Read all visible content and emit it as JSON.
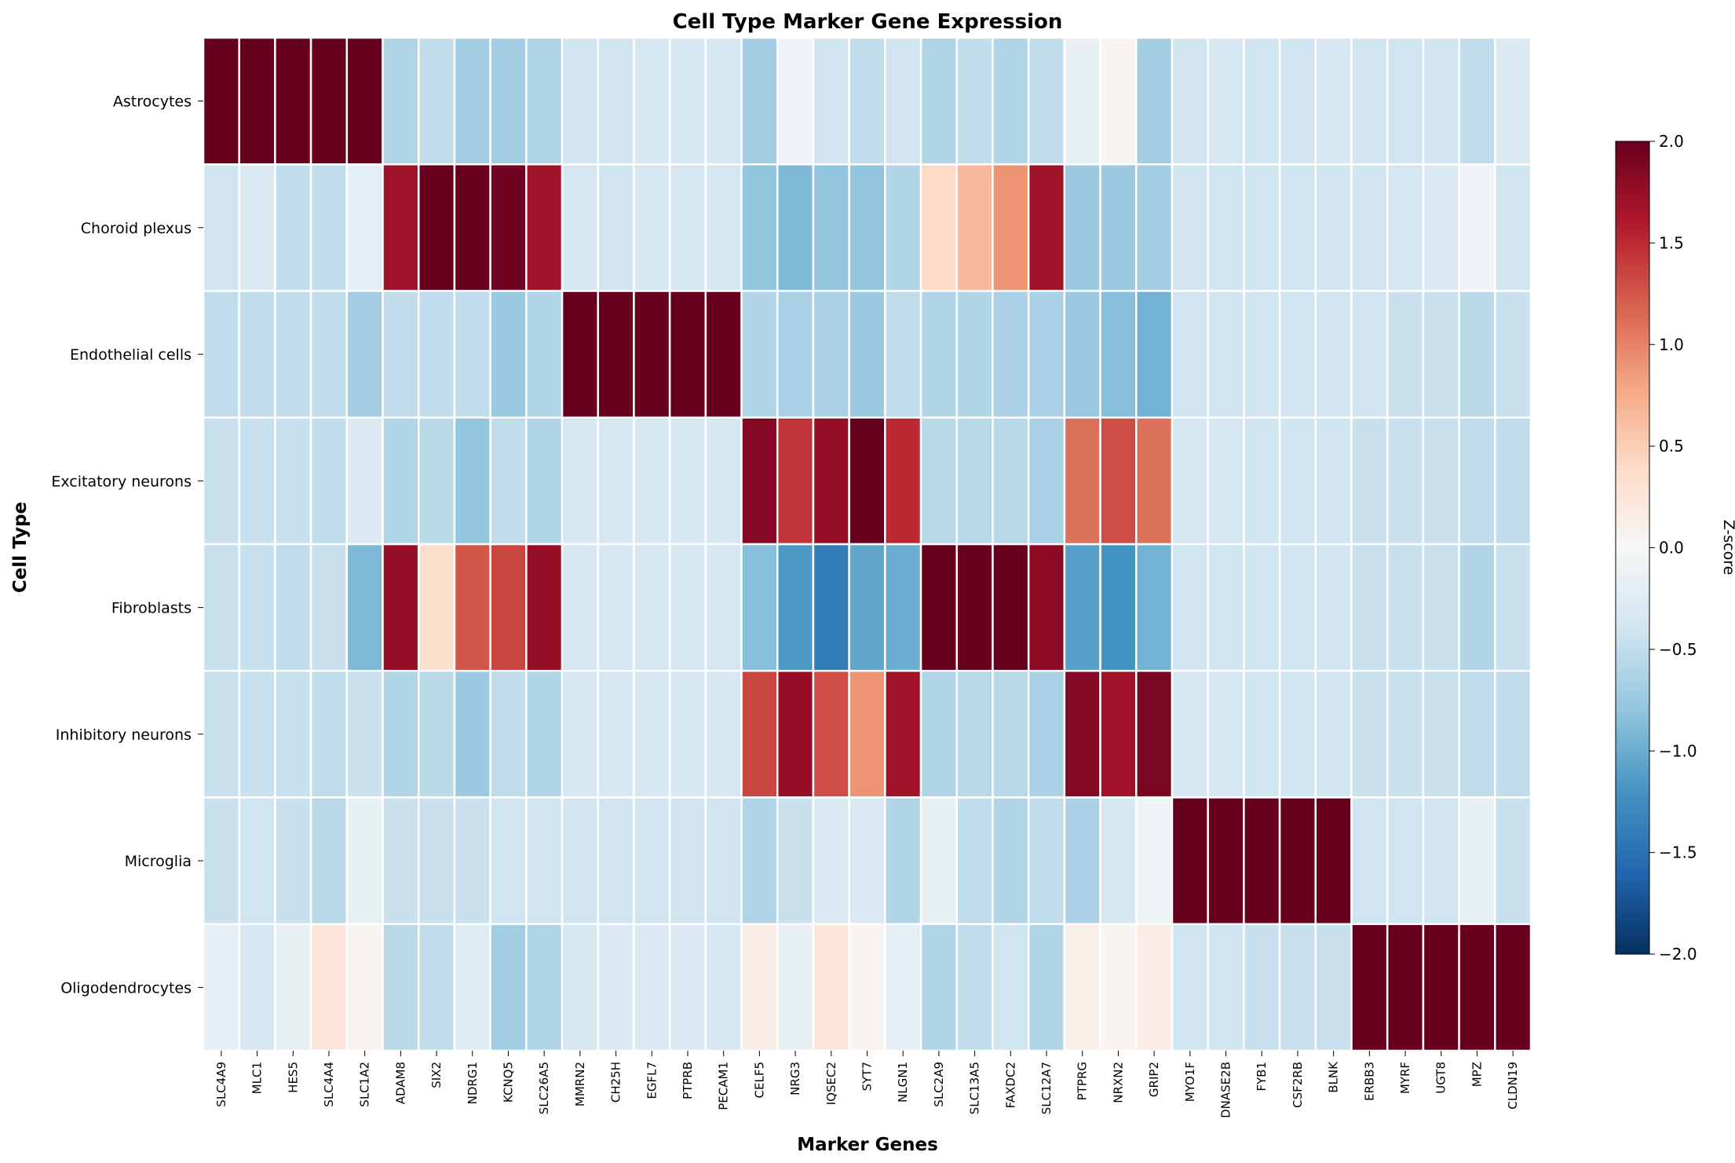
{
  "chart_data": {
    "type": "heatmap",
    "title": "Cell Type Marker Gene Expression",
    "xlabel": "Marker Genes",
    "ylabel": "Cell Type",
    "colorbar_label": "Z-score",
    "colormap": "RdBu_r",
    "vmin": -2.0,
    "vmax": 2.0,
    "colorbar_ticks": [
      "−2.0",
      "−1.5",
      "−1.0",
      "−0.5",
      "0.0",
      "0.5",
      "1.0",
      "1.5",
      "2.0"
    ],
    "columns": [
      "SLC4A9",
      "MLC1",
      "HES5",
      "SLC4A4",
      "SLC1A2",
      "ADAM8",
      "SIX2",
      "NDRG1",
      "KCNQ5",
      "SLC26A5",
      "MMRN2",
      "CH25H",
      "EGFL7",
      "PTPRB",
      "PECAM1",
      "CELF5",
      "NRG3",
      "IQSEC2",
      "SYT7",
      "NLGN1",
      "SLC2A9",
      "SLC13A5",
      "FAXDC2",
      "SLC12A7",
      "PTPRG",
      "NRXN2",
      "GRIP2",
      "MYO1F",
      "DNASE2B",
      "FYB1",
      "CSF2RB",
      "BLNK",
      "ERBB3",
      "MYRF",
      "UGT8",
      "MPZ",
      "CLDN19"
    ],
    "rows": [
      "Astrocytes",
      "Choroid plexus",
      "Endothelial cells",
      "Excitatory neurons",
      "Fibroblasts",
      "Inhibitory neurons",
      "Microglia",
      "Oligodendrocytes"
    ],
    "values": [
      [
        2.2,
        2.2,
        2.2,
        2.2,
        2.2,
        -0.6,
        -0.5,
        -0.7,
        -0.7,
        -0.6,
        -0.4,
        -0.4,
        -0.35,
        -0.35,
        -0.35,
        -0.7,
        -0.1,
        -0.4,
        -0.5,
        -0.4,
        -0.6,
        -0.5,
        -0.6,
        -0.5,
        -0.15,
        0.05,
        -0.7,
        -0.4,
        -0.35,
        -0.4,
        -0.4,
        -0.35,
        -0.4,
        -0.4,
        -0.4,
        -0.5,
        -0.3
      ],
      [
        -0.4,
        -0.3,
        -0.5,
        -0.5,
        -0.2,
        1.7,
        2.2,
        2.0,
        1.95,
        1.7,
        -0.35,
        -0.4,
        -0.35,
        -0.35,
        -0.35,
        -0.8,
        -0.9,
        -0.8,
        -0.8,
        -0.6,
        0.4,
        0.65,
        0.9,
        1.7,
        -0.75,
        -0.75,
        -0.7,
        -0.4,
        -0.4,
        -0.4,
        -0.4,
        -0.4,
        -0.4,
        -0.35,
        -0.3,
        -0.1,
        -0.4
      ],
      [
        -0.5,
        -0.5,
        -0.5,
        -0.5,
        -0.7,
        -0.5,
        -0.5,
        -0.5,
        -0.75,
        -0.6,
        2.2,
        2.2,
        2.2,
        2.2,
        2.2,
        -0.6,
        -0.65,
        -0.65,
        -0.75,
        -0.5,
        -0.6,
        -0.6,
        -0.65,
        -0.65,
        -0.75,
        -0.85,
        -0.95,
        -0.4,
        -0.4,
        -0.4,
        -0.4,
        -0.4,
        -0.4,
        -0.45,
        -0.45,
        -0.55,
        -0.45
      ],
      [
        -0.45,
        -0.45,
        -0.45,
        -0.5,
        -0.3,
        -0.6,
        -0.55,
        -0.8,
        -0.5,
        -0.6,
        -0.35,
        -0.35,
        -0.35,
        -0.35,
        -0.35,
        1.85,
        1.45,
        1.75,
        2.2,
        1.5,
        -0.55,
        -0.55,
        -0.55,
        -0.65,
        1.1,
        1.3,
        1.1,
        -0.35,
        -0.35,
        -0.4,
        -0.4,
        -0.4,
        -0.45,
        -0.45,
        -0.45,
        -0.5,
        -0.5
      ],
      [
        -0.45,
        -0.45,
        -0.5,
        -0.45,
        -0.9,
        1.75,
        0.35,
        1.25,
        1.35,
        1.75,
        -0.35,
        -0.35,
        -0.35,
        -0.35,
        -0.35,
        -0.85,
        -1.15,
        -1.4,
        -1.05,
        -1.0,
        2.2,
        2.2,
        2.2,
        1.8,
        -1.1,
        -1.2,
        -0.95,
        -0.4,
        -0.4,
        -0.4,
        -0.4,
        -0.4,
        -0.45,
        -0.45,
        -0.45,
        -0.6,
        -0.45
      ],
      [
        -0.45,
        -0.45,
        -0.45,
        -0.5,
        -0.45,
        -0.6,
        -0.55,
        -0.75,
        -0.5,
        -0.6,
        -0.35,
        -0.35,
        -0.35,
        -0.35,
        -0.35,
        1.35,
        1.75,
        1.3,
        0.9,
        1.7,
        -0.6,
        -0.55,
        -0.55,
        -0.65,
        1.85,
        1.7,
        1.9,
        -0.35,
        -0.35,
        -0.4,
        -0.4,
        -0.4,
        -0.45,
        -0.45,
        -0.45,
        -0.5,
        -0.5
      ],
      [
        -0.45,
        -0.4,
        -0.45,
        -0.55,
        -0.15,
        -0.45,
        -0.45,
        -0.45,
        -0.4,
        -0.4,
        -0.4,
        -0.4,
        -0.4,
        -0.4,
        -0.4,
        -0.6,
        -0.45,
        -0.3,
        -0.3,
        -0.6,
        -0.15,
        -0.5,
        -0.6,
        -0.5,
        -0.65,
        -0.35,
        -0.1,
        2.2,
        2.2,
        2.2,
        2.2,
        2.2,
        -0.4,
        -0.4,
        -0.4,
        -0.15,
        -0.45
      ],
      [
        -0.2,
        -0.35,
        -0.15,
        0.25,
        0.05,
        -0.55,
        -0.5,
        -0.25,
        -0.7,
        -0.6,
        -0.35,
        -0.3,
        -0.3,
        -0.3,
        -0.35,
        0.15,
        -0.15,
        0.25,
        0.05,
        -0.2,
        -0.6,
        -0.5,
        -0.4,
        -0.6,
        0.1,
        0.05,
        0.15,
        -0.4,
        -0.4,
        -0.45,
        -0.45,
        -0.45,
        2.2,
        2.2,
        2.2,
        2.2,
        2.2
      ]
    ]
  }
}
